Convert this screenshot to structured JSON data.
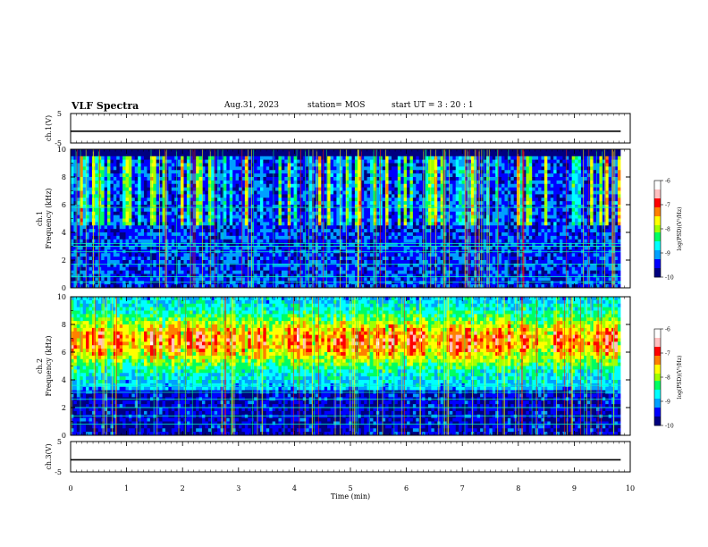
{
  "header": {
    "title": "VLF Spectra",
    "date": "Aug.31, 2023",
    "station": "station= MOS",
    "start_ut": "start  UT =   3 : 20 : 1"
  },
  "chart_data": [
    {
      "type": "line",
      "name": "ch1_waveform",
      "ylabel": "ch.1(V)",
      "ylim": [
        -5,
        5
      ],
      "yticks": [
        "5",
        "-5"
      ],
      "x": [
        0,
        9.83
      ],
      "y": [
        -1.0,
        -1.0
      ]
    },
    {
      "type": "heatmap",
      "name": "ch1_spectrogram",
      "ylabel": "ch.1 Frequency (kHz)",
      "ylim": [
        0,
        10
      ],
      "yticks": [
        "0",
        "2",
        "4",
        "6",
        "8",
        "10"
      ],
      "colorbar": {
        "label": "log(PSD)(V²/Hz)",
        "range": [
          -10,
          -6
        ],
        "ticks": [
          "-6",
          "-7",
          "-8",
          "-9",
          "-10"
        ]
      },
      "base_level": -9.4,
      "active_level": -8.7,
      "band_lines_khz": [
        0.4,
        0.8,
        1.7,
        2.6,
        3.0,
        3.2,
        5.8
      ],
      "data_end_min": 9.83
    },
    {
      "type": "heatmap",
      "name": "ch2_spectrogram",
      "ylabel": "ch.2 Frequency (kHz)",
      "ylim": [
        0,
        10
      ],
      "yticks": [
        "0",
        "2",
        "4",
        "6",
        "8",
        "10"
      ],
      "colorbar": {
        "label": "log(PSD)(V²/Hz)",
        "range": [
          -10,
          -6
        ],
        "ticks": [
          "-6",
          "-7",
          "-8",
          "-9",
          "-10"
        ]
      },
      "base_level": -9.0,
      "active_level": -6.8,
      "band_lines_khz": [
        0.8,
        1.4,
        2.0,
        2.6,
        3.1,
        3.6
      ],
      "data_end_min": 9.83
    },
    {
      "type": "line",
      "name": "ch3_waveform",
      "ylabel": "ch.3(V)",
      "ylim": [
        -5,
        5
      ],
      "yticks": [
        "5",
        "-5"
      ],
      "x": [
        0,
        9.83
      ],
      "y": [
        -1.0,
        -1.0
      ]
    }
  ],
  "xaxis": {
    "label": "Time  (min)",
    "range": [
      0,
      10
    ],
    "ticks": [
      "0",
      "1",
      "2",
      "3",
      "4",
      "5",
      "6",
      "7",
      "8",
      "9",
      "10"
    ]
  },
  "colors": {
    "scale": [
      "#000080",
      "#0000ff",
      "#00a0ff",
      "#00ffff",
      "#00ff60",
      "#a0ff00",
      "#ffff00",
      "#ff8000",
      "#ff0000",
      "#ffc0c0",
      "#ffffff"
    ]
  }
}
